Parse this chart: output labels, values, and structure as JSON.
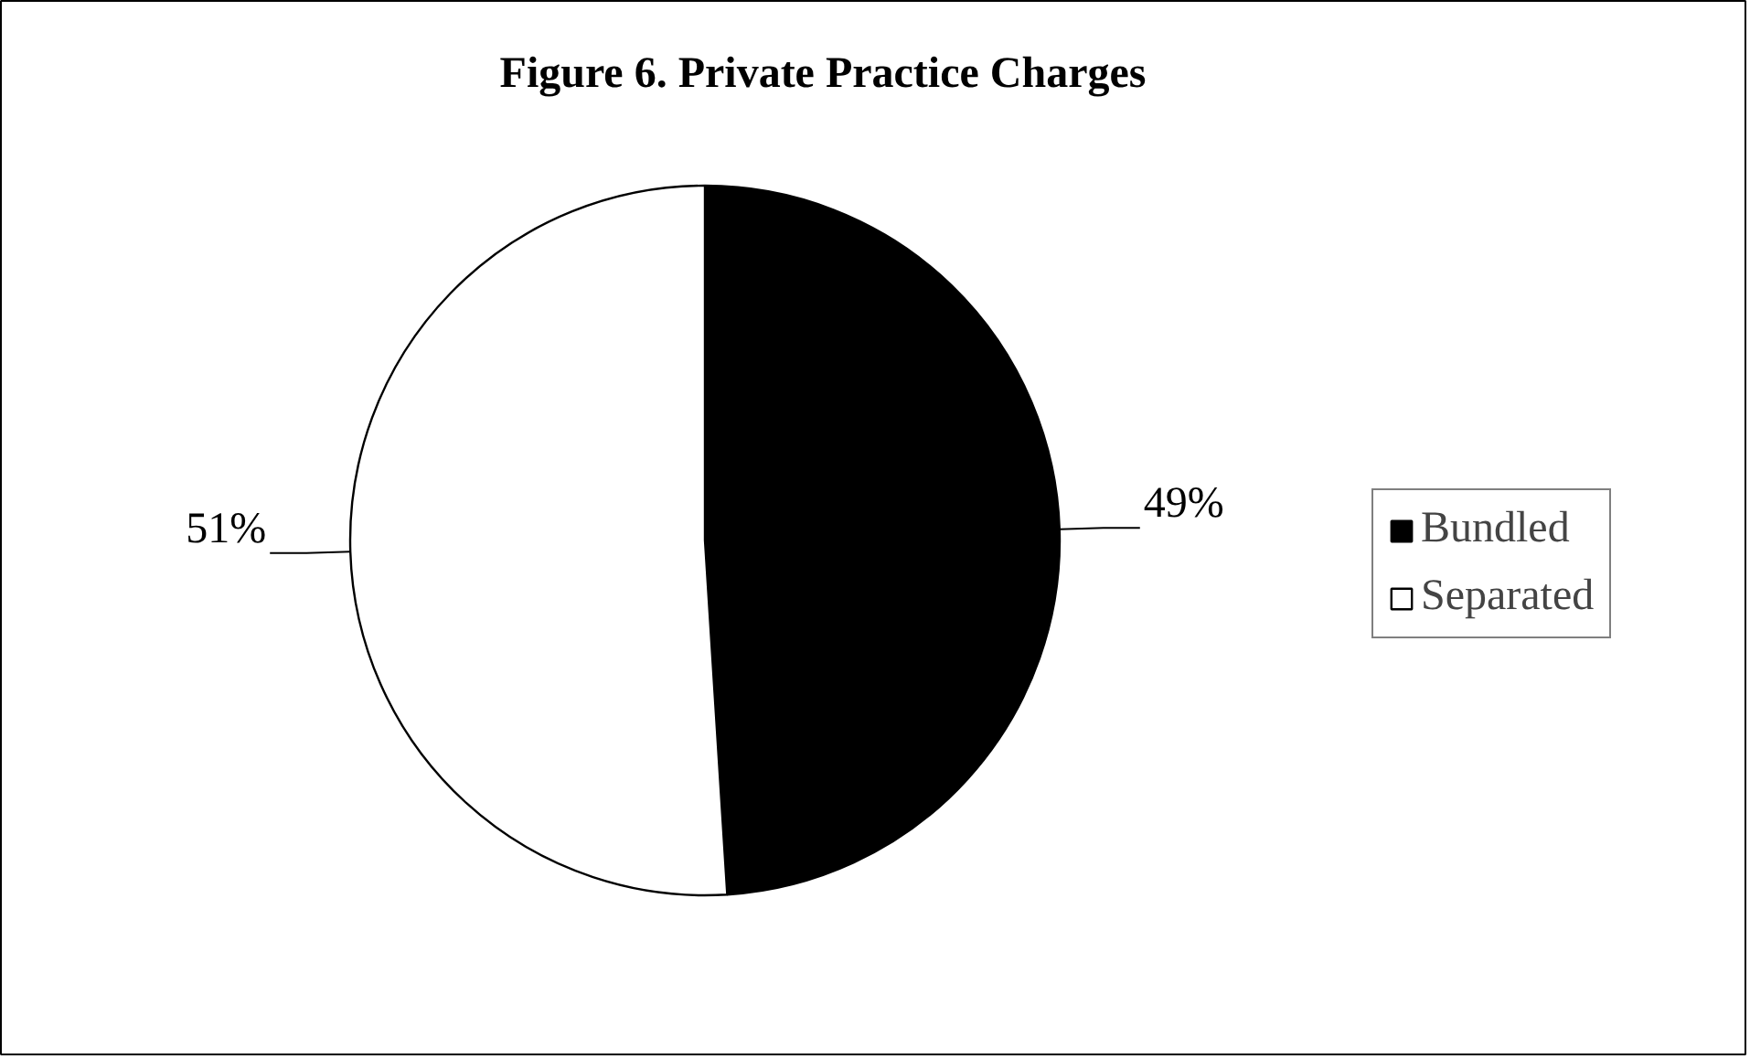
{
  "chart_data": {
    "type": "pie",
    "title": "Figure 6. Private Practice Charges",
    "categories": [
      "Bundled",
      "Separated"
    ],
    "values": [
      49,
      51
    ],
    "colors": [
      "#000000",
      "#ffffff"
    ],
    "value_labels": [
      "49%",
      "51%"
    ],
    "legend": "right"
  }
}
